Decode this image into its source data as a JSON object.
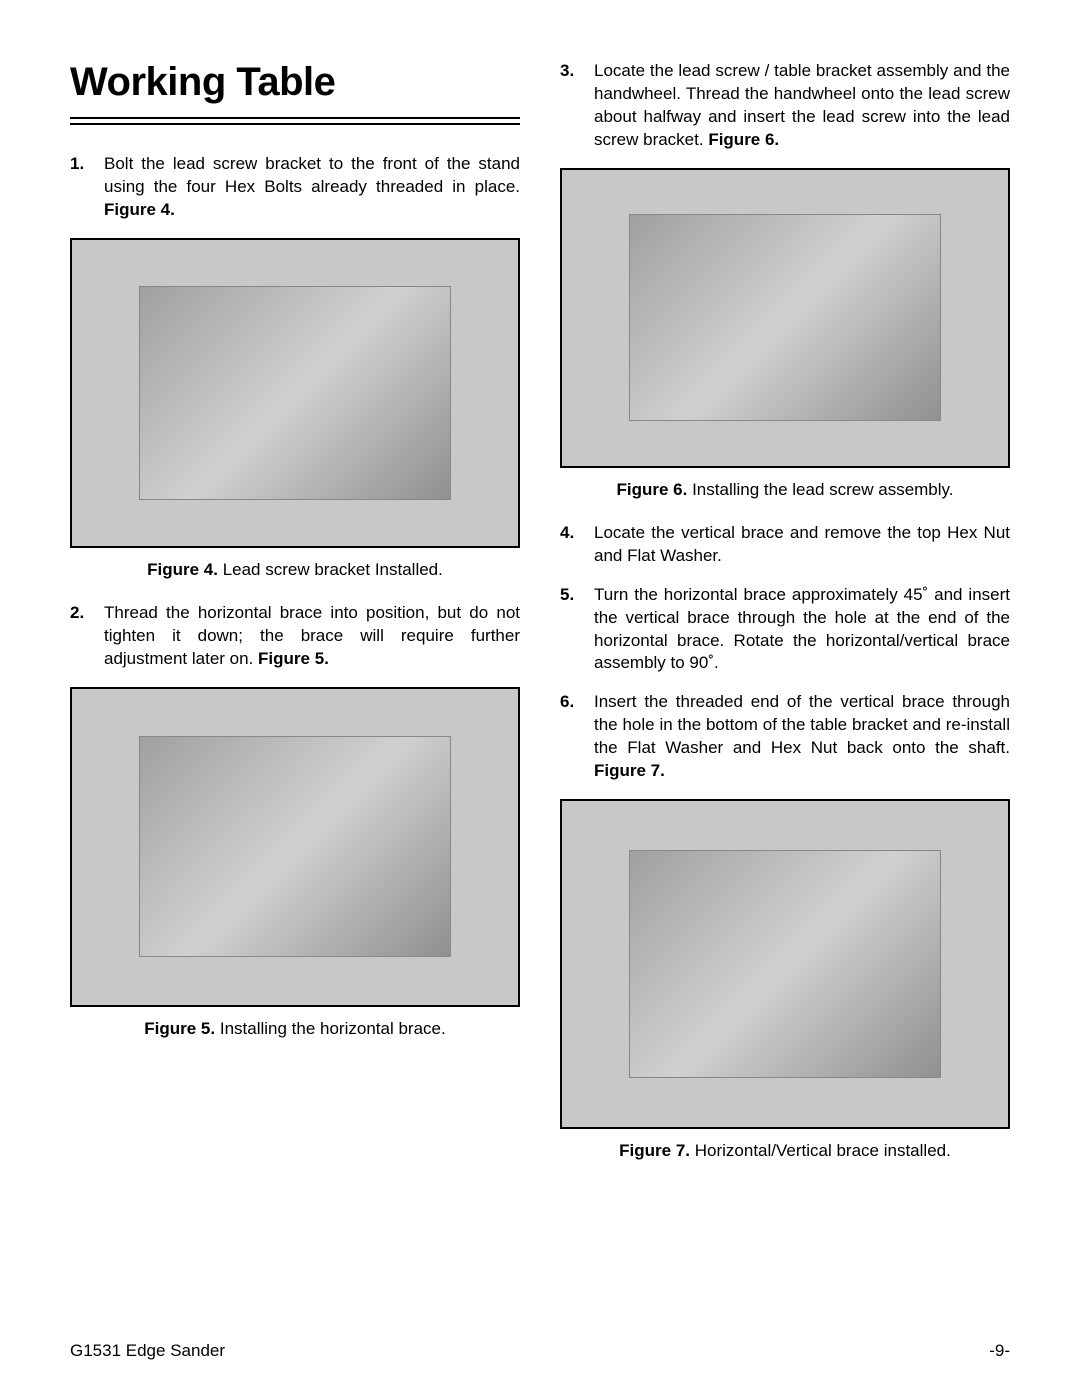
{
  "title": "Working Table",
  "left": {
    "step1": {
      "num": "1.",
      "text": "Bolt the lead screw bracket to the front of the stand using the four Hex Bolts already threaded in place. ",
      "ref": "Figure 4."
    },
    "cap4": {
      "label": "Figure 4.",
      "text": " Lead screw bracket Installed."
    },
    "step2": {
      "num": "2.",
      "text": "Thread the horizontal brace into position, but do not tighten it down; the brace will require further adjustment later on. ",
      "ref": "Figure 5."
    },
    "cap5": {
      "label": "Figure 5.",
      "text": " Installing the horizontal brace."
    }
  },
  "right": {
    "step3": {
      "num": "3.",
      "text": "Locate the lead screw / table bracket assembly and the handwheel. Thread the handwheel onto the lead screw about halfway and insert the lead screw into the lead screw bracket. ",
      "ref": "Figure 6."
    },
    "cap6": {
      "label": "Figure 6.",
      "text": " Installing the lead screw assembly."
    },
    "step4": {
      "num": "4.",
      "text": "Locate the vertical brace and remove the top Hex Nut and Flat Washer."
    },
    "step5": {
      "num": "5.",
      "text": "Turn the horizontal brace approximately 45˚ and insert the vertical brace through the hole at the end of the horizontal brace. Rotate the horizontal/vertical brace assembly to 90˚."
    },
    "step6": {
      "num": "6.",
      "text": "Insert the threaded end of the vertical brace through the hole in the bottom of the table bracket and re-install the Flat Washer and Hex Nut back onto the shaft. ",
      "ref": "Figure 7."
    },
    "cap7": {
      "label": "Figure 7.",
      "text": " Horizontal/Vertical brace installed."
    }
  },
  "footer": {
    "left": "G1531 Edge Sander",
    "right": "-9-"
  }
}
